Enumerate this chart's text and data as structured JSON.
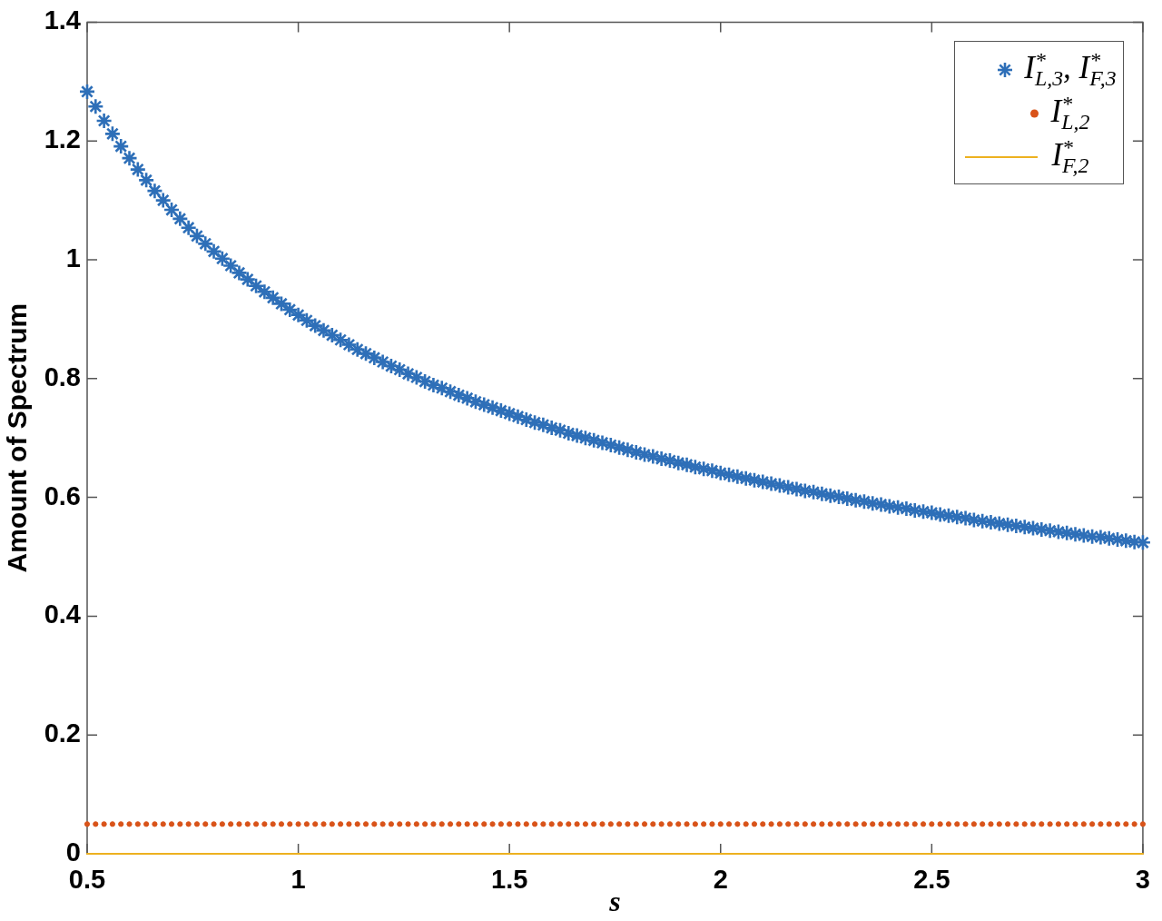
{
  "chart_data": {
    "type": "scatter",
    "xlabel": "s",
    "ylabel": "Amount of Spectrum",
    "x": [
      0.5,
      0.52,
      0.54,
      0.56,
      0.58,
      0.6,
      0.62,
      0.64,
      0.66,
      0.68,
      0.7,
      0.72,
      0.74,
      0.76,
      0.78,
      0.8,
      0.82,
      0.84,
      0.86,
      0.88,
      0.9,
      0.92,
      0.94,
      0.96,
      0.98,
      1,
      1.02,
      1.04,
      1.06,
      1.08,
      1.1,
      1.12,
      1.14,
      1.16,
      1.18,
      1.2,
      1.22,
      1.24,
      1.26,
      1.28,
      1.3,
      1.32,
      1.34,
      1.36,
      1.38,
      1.4,
      1.42,
      1.44,
      1.46,
      1.48,
      1.5,
      1.52,
      1.54,
      1.56,
      1.58,
      1.6,
      1.62,
      1.64,
      1.66,
      1.68,
      1.7,
      1.72,
      1.74,
      1.76,
      1.78,
      1.8,
      1.82,
      1.84,
      1.86,
      1.88,
      1.9,
      1.92,
      1.94,
      1.96,
      1.98,
      2,
      2.02,
      2.04,
      2.06,
      2.08,
      2.1,
      2.12,
      2.14,
      2.16,
      2.18,
      2.2,
      2.22,
      2.24,
      2.26,
      2.28,
      2.3,
      2.32,
      2.34,
      2.36,
      2.38,
      2.4,
      2.42,
      2.44,
      2.46,
      2.48,
      2.5,
      2.52,
      2.54,
      2.56,
      2.58,
      2.6,
      2.62,
      2.64,
      2.66,
      2.68,
      2.7,
      2.72,
      2.74,
      2.76,
      2.78,
      2.8,
      2.82,
      2.84,
      2.86,
      2.88,
      2.9,
      2.92,
      2.94,
      2.96,
      2.98,
      3
    ],
    "series": [
      {
        "name": "I$^{*}$$_{L,3}$, I$^{*}$$_{F,3}$",
        "color": "#2e6fb8",
        "marker": "cross",
        "values": [
          1.283,
          1.258,
          1.234,
          1.212,
          1.191,
          1.171,
          1.152,
          1.134,
          1.116,
          1.1,
          1.084,
          1.069,
          1.054,
          1.04,
          1.027,
          1.014,
          1.002,
          0.99,
          0.978,
          0.967,
          0.956,
          0.946,
          0.936,
          0.926,
          0.916,
          0.907,
          0.898,
          0.889,
          0.881,
          0.873,
          0.865,
          0.857,
          0.849,
          0.842,
          0.835,
          0.828,
          0.821,
          0.815,
          0.808,
          0.802,
          0.795,
          0.789,
          0.784,
          0.778,
          0.772,
          0.767,
          0.761,
          0.756,
          0.751,
          0.746,
          0.741,
          0.736,
          0.731,
          0.726,
          0.722,
          0.717,
          0.713,
          0.708,
          0.704,
          0.7,
          0.696,
          0.692,
          0.688,
          0.684,
          0.68,
          0.676,
          0.672,
          0.669,
          0.665,
          0.662,
          0.658,
          0.655,
          0.651,
          0.648,
          0.645,
          0.641,
          0.638,
          0.635,
          0.632,
          0.629,
          0.626,
          0.623,
          0.62,
          0.617,
          0.614,
          0.611,
          0.609,
          0.606,
          0.603,
          0.601,
          0.598,
          0.595,
          0.593,
          0.59,
          0.588,
          0.585,
          0.583,
          0.581,
          0.578,
          0.576,
          0.574,
          0.571,
          0.569,
          0.567,
          0.565,
          0.562,
          0.56,
          0.558,
          0.556,
          0.554,
          0.552,
          0.55,
          0.548,
          0.546,
          0.544,
          0.542,
          0.54,
          0.538,
          0.536,
          0.534,
          0.533,
          0.531,
          0.529,
          0.527,
          0.525,
          0.524
        ]
      },
      {
        "name": "I$^{*}$$_{L,2}$",
        "color": "#d95319",
        "marker": "circle",
        "values": [
          0.05,
          0.05,
          0.05,
          0.05,
          0.05,
          0.05,
          0.05,
          0.05,
          0.05,
          0.05,
          0.05,
          0.05,
          0.05,
          0.05,
          0.05,
          0.05,
          0.05,
          0.05,
          0.05,
          0.05,
          0.05,
          0.05,
          0.05,
          0.05,
          0.05,
          0.05,
          0.05,
          0.05,
          0.05,
          0.05,
          0.05,
          0.05,
          0.05,
          0.05,
          0.05,
          0.05,
          0.05,
          0.05,
          0.05,
          0.05,
          0.05,
          0.05,
          0.05,
          0.05,
          0.05,
          0.05,
          0.05,
          0.05,
          0.05,
          0.05,
          0.05,
          0.05,
          0.05,
          0.05,
          0.05,
          0.05,
          0.05,
          0.05,
          0.05,
          0.05,
          0.05,
          0.05,
          0.05,
          0.05,
          0.05,
          0.05,
          0.05,
          0.05,
          0.05,
          0.05,
          0.05,
          0.05,
          0.05,
          0.05,
          0.05,
          0.05,
          0.05,
          0.05,
          0.05,
          0.05,
          0.05,
          0.05,
          0.05,
          0.05,
          0.05,
          0.05,
          0.05,
          0.05,
          0.05,
          0.05,
          0.05,
          0.05,
          0.05,
          0.05,
          0.05,
          0.05,
          0.05,
          0.05,
          0.05,
          0.05,
          0.05,
          0.05,
          0.05,
          0.05,
          0.05,
          0.05,
          0.05,
          0.05,
          0.05,
          0.05,
          0.05,
          0.05,
          0.05,
          0.05,
          0.05,
          0.05,
          0.05,
          0.05,
          0.05,
          0.05,
          0.05,
          0.05,
          0.05,
          0.05,
          0.05,
          0.05
        ]
      },
      {
        "name": "I$^{*}$$_{F,2}$",
        "type": "line",
        "color": "#edb120",
        "marker": "none",
        "line_style": "solid",
        "x": [
          0.5,
          3
        ],
        "values": [
          0,
          0
        ]
      }
    ],
    "xlim": [
      0.5,
      3
    ],
    "ylim": [
      0,
      1.4
    ],
    "xticks": [
      0.5,
      1,
      1.5,
      2,
      2.5,
      3
    ],
    "yticks": [
      0,
      0.2,
      0.4,
      0.6,
      0.8,
      1,
      1.2,
      1.4
    ],
    "grid": false,
    "legend": "top right"
  }
}
